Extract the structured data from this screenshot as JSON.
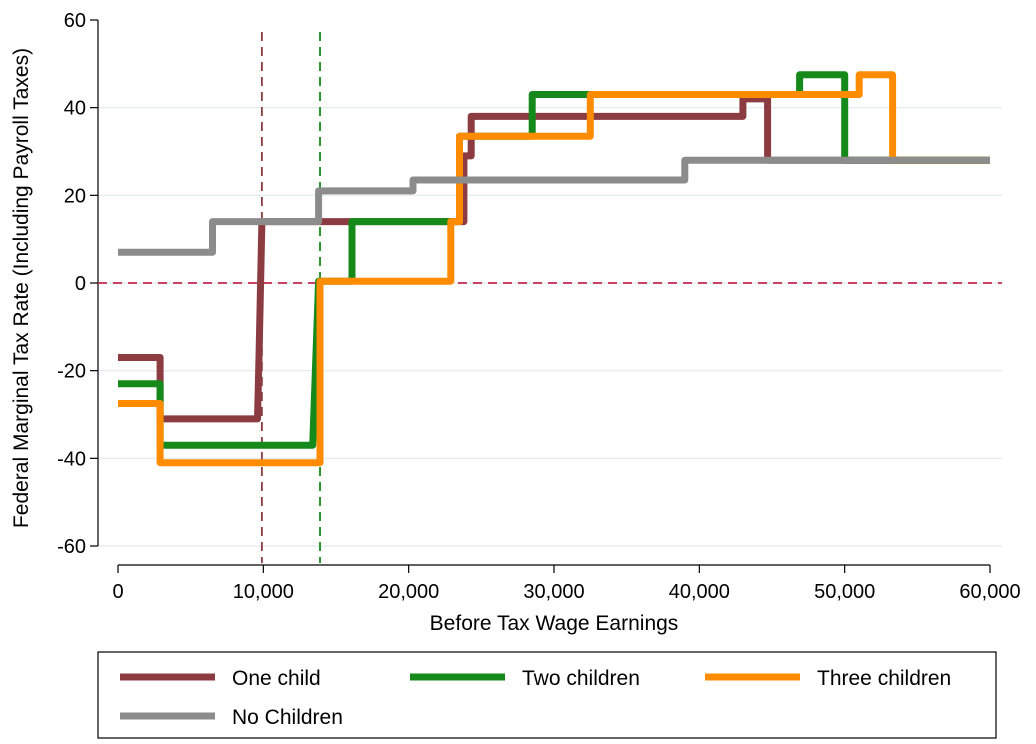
{
  "chart_data": {
    "type": "line",
    "ylabel": "Federal Marginal Tax Rate (Including Payroll Taxes)",
    "xlabel": "Before Tax Wage Earnings",
    "xlim": [
      0,
      60000
    ],
    "ylim": [
      -60,
      60
    ],
    "xticks": [
      0,
      {
        "value": 10000,
        "label": "10,000"
      },
      {
        "value": 20000,
        "label": "20,000"
      },
      {
        "value": 30000,
        "label": "30,000"
      },
      {
        "value": 40000,
        "label": "40,000"
      },
      {
        "value": 50000,
        "label": "50,000"
      },
      {
        "value": 60000,
        "label": "60,000"
      }
    ],
    "yticks": [
      -60,
      -40,
      -20,
      0,
      20,
      40,
      60
    ],
    "grid": true,
    "legend": "bottom",
    "vlines": [
      {
        "x": 9900,
        "color": "#8c3b41"
      },
      {
        "x": 13900,
        "color": "#15891a"
      }
    ],
    "hlines": [
      {
        "y": 0,
        "color": "#c8284d"
      }
    ],
    "series": [
      {
        "name": "One child",
        "color": "#8c3b41",
        "x": [
          0,
          2900,
          2900,
          9600,
          9700,
          9900,
          23800,
          23800,
          24300,
          24300,
          43000,
          43000,
          44700,
          44700,
          60000
        ],
        "values": [
          -17,
          -17,
          -31,
          -31,
          -17,
          14,
          14,
          29,
          29,
          38,
          38,
          42,
          42,
          28,
          28
        ]
      },
      {
        "name": "Two children",
        "color": "#15891a",
        "x": [
          0,
          2900,
          2900,
          13400,
          13800,
          16100,
          16100,
          23500,
          23500,
          28500,
          28500,
          46900,
          46900,
          50000,
          50000,
          60000
        ],
        "values": [
          -23,
          -23,
          -37,
          -37,
          0.4,
          0.4,
          14,
          14,
          33.5,
          33.5,
          43,
          43,
          47.5,
          47.5,
          28,
          28
        ]
      },
      {
        "name": "Three children",
        "color": "#ff8c00",
        "x": [
          0,
          2900,
          2900,
          13900,
          13900,
          22900,
          22900,
          23500,
          23500,
          32500,
          32500,
          51000,
          51000,
          53300,
          53300,
          60000
        ],
        "values": [
          -27.5,
          -27.5,
          -41,
          -41,
          0.4,
          0.4,
          14,
          14,
          33.5,
          33.5,
          43,
          43,
          47.5,
          47.5,
          28,
          28
        ]
      },
      {
        "name": "No Children",
        "color": "#8c8c8c",
        "x": [
          0,
          6500,
          6500,
          13800,
          13800,
          20300,
          20300,
          39000,
          39000,
          60000
        ],
        "values": [
          7,
          7,
          14,
          14,
          21,
          21,
          23.5,
          23.5,
          28,
          28
        ]
      }
    ]
  }
}
